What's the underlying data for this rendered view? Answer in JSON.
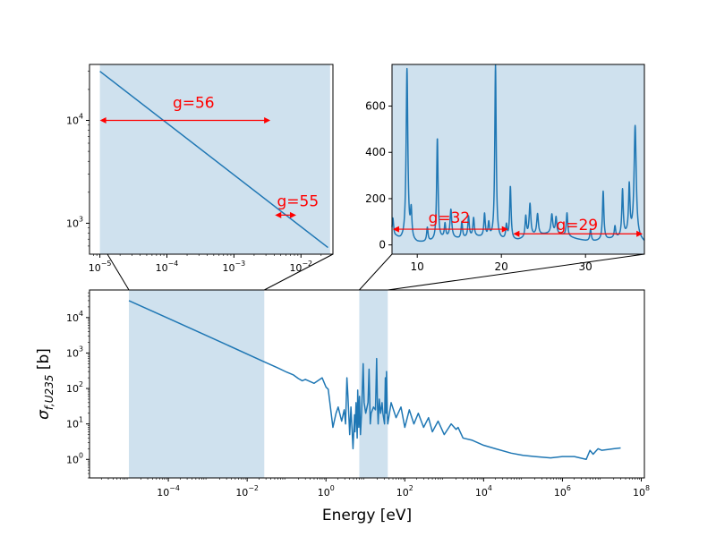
{
  "colors": {
    "line": "#1f77b4",
    "shade": "#cfe1ee",
    "arrow": "#ff0000",
    "axis": "#000000"
  },
  "chart_data": [
    {
      "id": "main",
      "type": "line",
      "title": "",
      "xlabel": "Energy [eV]",
      "ylabel": "σ_{f,U235} [b]",
      "xscale": "log",
      "yscale": "log",
      "xlim": [
        1e-06,
        120000000.0
      ],
      "ylim": [
        0.3,
        60000
      ],
      "grid": false,
      "xticks": [
        {
          "value": 0.0001,
          "base": "10",
          "exp": "−4"
        },
        {
          "value": 0.01,
          "base": "10",
          "exp": "−2"
        },
        {
          "value": 1,
          "base": "10",
          "exp": "0"
        },
        {
          "value": 100,
          "base": "10",
          "exp": "2"
        },
        {
          "value": 10000.0,
          "base": "10",
          "exp": "4"
        },
        {
          "value": 1000000.0,
          "base": "10",
          "exp": "6"
        },
        {
          "value": 100000000.0,
          "base": "10",
          "exp": "8"
        }
      ],
      "yticks": [
        {
          "value": 1,
          "base": "10",
          "exp": "0"
        },
        {
          "value": 10,
          "base": "10",
          "exp": "1"
        },
        {
          "value": 100,
          "base": "10",
          "exp": "2"
        },
        {
          "value": 1000,
          "base": "10",
          "exp": "3"
        },
        {
          "value": 10000,
          "base": "10",
          "exp": "4"
        }
      ],
      "shaded_regions": [
        [
          1e-05,
          0.0272
        ],
        [
          7,
          37
        ]
      ],
      "series": [
        {
          "x": [
            1e-05,
            0.0001,
            0.001,
            0.0253,
            0.06,
            0.1,
            0.15,
            0.2,
            0.25,
            0.3,
            0.5,
            0.8,
            1.0,
            1.14,
            1.5,
            1.8,
            2.04,
            2.5,
            2.9,
            3.14,
            3.4,
            3.61,
            4.0,
            4.3,
            4.85,
            5.3,
            5.45,
            5.8,
            6.2,
            6.39,
            6.8,
            7.08,
            7.5,
            8.0,
            8.78,
            9.28,
            10.2,
            11.66,
            12.39,
            13.3,
            14.0,
            16.09,
            18.05,
            19.3,
            20.2,
            21.07,
            22.5,
            23.4,
            24.3,
            26.5,
            27.8,
            30.6,
            32.1,
            33.5,
            34.4,
            35.2,
            36.0,
            37.0,
            45,
            60,
            80,
            100,
            130,
            170,
            220,
            300,
            400,
            500,
            700,
            1000,
            1500,
            2000,
            2250,
            3000,
            5000,
            10000,
            20000,
            50000,
            100000,
            200000,
            500000,
            1000000,
            2000000,
            4000000,
            5000000,
            6000000,
            8000000,
            10000000,
            20000000,
            30000000
          ],
          "y": [
            30000,
            9500,
            3000,
            585,
            380,
            290,
            240,
            190,
            165,
            180,
            140,
            200,
            110,
            95,
            8,
            20,
            30,
            12,
            25,
            10,
            200,
            60,
            5,
            30,
            2,
            18,
            6,
            40,
            4,
            90,
            8,
            60,
            5,
            20,
            500,
            40,
            20,
            40,
            350,
            10,
            20,
            30,
            25,
            700,
            40,
            10,
            50,
            30,
            20,
            40,
            20,
            10,
            200,
            20,
            300,
            80,
            20,
            10,
            40,
            15,
            30,
            8,
            25,
            10,
            20,
            8,
            15,
            6,
            12,
            5,
            10,
            7,
            8,
            4,
            3.5,
            2.5,
            2,
            1.5,
            1.3,
            1.2,
            1.1,
            1.2,
            1.2,
            1.0,
            1.8,
            1.4,
            2.0,
            1.8,
            2.0,
            2.1
          ]
        }
      ]
    },
    {
      "id": "inset_left",
      "type": "line",
      "title": "",
      "xscale": "log",
      "yscale": "log",
      "xlim": [
        7e-06,
        0.03
      ],
      "ylim": [
        500,
        35000
      ],
      "grid": false,
      "xticks": [
        {
          "value": 1e-05,
          "base": "10",
          "exp": "−5"
        },
        {
          "value": 0.0001,
          "base": "10",
          "exp": "−4"
        },
        {
          "value": 0.001,
          "base": "10",
          "exp": "−3"
        },
        {
          "value": 0.01,
          "base": "10",
          "exp": "−2"
        }
      ],
      "yticks": [
        {
          "value": 1000,
          "base": "10",
          "exp": "3"
        },
        {
          "value": 10000,
          "base": "10",
          "exp": "4"
        }
      ],
      "shaded_regions": [
        [
          1e-05,
          0.0272
        ]
      ],
      "series": [
        {
          "x": [
            1e-05,
            0.0253
          ],
          "y": [
            30000,
            580
          ]
        }
      ],
      "annotations": [
        {
          "text": "g=56",
          "x1": 1e-05,
          "x2": 0.0035,
          "y": 10000,
          "label_x": 0.00025,
          "label_y": 15000
        },
        {
          "text": "g=55",
          "x1": 0.0041,
          "x2": 0.0085,
          "y": 1200,
          "label_x": 0.009,
          "label_y": 1650
        }
      ]
    },
    {
      "id": "inset_right",
      "type": "line",
      "title": "",
      "xscale": "linear",
      "yscale": "linear",
      "xlim": [
        7,
        37
      ],
      "ylim": [
        -40,
        780
      ],
      "grid": false,
      "xticks": [
        {
          "value": 10,
          "label": "10"
        },
        {
          "value": 20,
          "label": "20"
        },
        {
          "value": 30,
          "label": "30"
        }
      ],
      "yticks": [
        {
          "value": 0,
          "label": "0"
        },
        {
          "value": 200,
          "label": "200"
        },
        {
          "value": 400,
          "label": "400"
        },
        {
          "value": 600,
          "label": "600"
        }
      ],
      "shaded_regions": [
        [
          7,
          37
        ]
      ],
      "base": [
        [
          7,
          20
        ],
        [
          7.5,
          30
        ],
        [
          8,
          20
        ],
        [
          9,
          15
        ],
        [
          10,
          8
        ],
        [
          11,
          10
        ],
        [
          12,
          15
        ],
        [
          13,
          25
        ],
        [
          14,
          30
        ],
        [
          15,
          25
        ],
        [
          16,
          30
        ],
        [
          17,
          35
        ],
        [
          18,
          30
        ],
        [
          19,
          25
        ],
        [
          20,
          20
        ],
        [
          21,
          18
        ],
        [
          22,
          20
        ],
        [
          23,
          30
        ],
        [
          24,
          40
        ],
        [
          25,
          45
        ],
        [
          26,
          50
        ],
        [
          27,
          45
        ],
        [
          28,
          35
        ],
        [
          29,
          25
        ],
        [
          30,
          18
        ],
        [
          31,
          15
        ],
        [
          32,
          20
        ],
        [
          33,
          25
        ],
        [
          34,
          30
        ],
        [
          35,
          40
        ],
        [
          36,
          30
        ],
        [
          37,
          10
        ]
      ],
      "peaks": [
        [
          7.1,
          90,
          0.12
        ],
        [
          8.78,
          740,
          0.12
        ],
        [
          9.28,
          120,
          0.1
        ],
        [
          11.2,
          60,
          0.1
        ],
        [
          12.39,
          440,
          0.1
        ],
        [
          13.3,
          60,
          0.1
        ],
        [
          14.0,
          120,
          0.12
        ],
        [
          15.3,
          70,
          0.1
        ],
        [
          16.1,
          90,
          0.1
        ],
        [
          16.7,
          80,
          0.1
        ],
        [
          18.0,
          100,
          0.1
        ],
        [
          18.5,
          60,
          0.1
        ],
        [
          19.3,
          750,
          0.1
        ],
        [
          20.6,
          60,
          0.1
        ],
        [
          21.07,
          230,
          0.1
        ],
        [
          22.9,
          90,
          0.1
        ],
        [
          23.4,
          140,
          0.12
        ],
        [
          24.3,
          90,
          0.12
        ],
        [
          26.0,
          80,
          0.12
        ],
        [
          26.5,
          70,
          0.1
        ],
        [
          27.8,
          100,
          0.1
        ],
        [
          30.6,
          50,
          0.1
        ],
        [
          32.1,
          210,
          0.1
        ],
        [
          33.5,
          50,
          0.1
        ],
        [
          34.4,
          200,
          0.1
        ],
        [
          35.2,
          210,
          0.1
        ],
        [
          35.9,
          480,
          0.15
        ]
      ],
      "annotations": [
        {
          "text": "g=32",
          "x1": 7.1,
          "x2": 20.8,
          "y": 68,
          "label_x": 13.8,
          "label_y": 118
        },
        {
          "text": "g=29",
          "x1": 21.4,
          "x2": 36.8,
          "y": 48,
          "label_x": 29.0,
          "label_y": 88
        }
      ]
    }
  ]
}
